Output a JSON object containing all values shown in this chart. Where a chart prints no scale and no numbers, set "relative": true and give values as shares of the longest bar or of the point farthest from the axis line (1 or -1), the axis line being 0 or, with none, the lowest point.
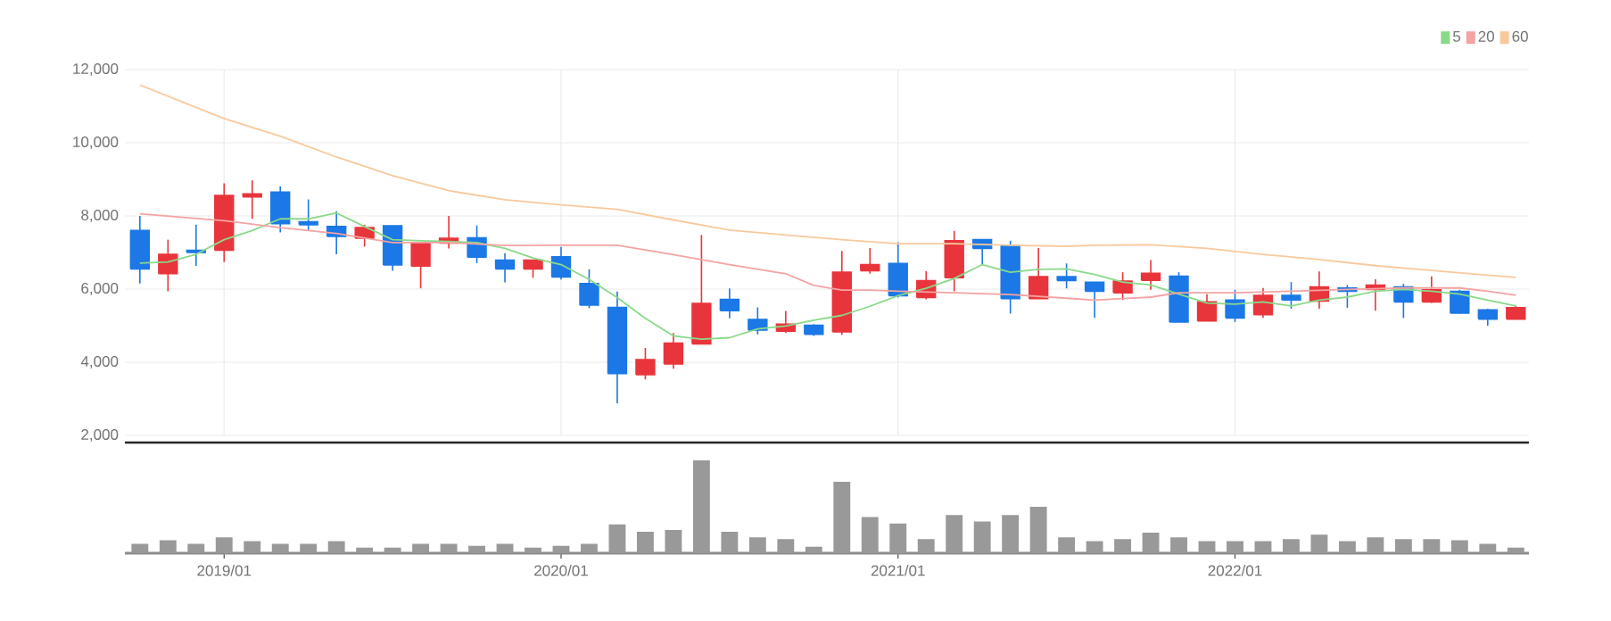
{
  "chart_data": [
    {
      "type": "candlestick",
      "grid": true,
      "legend": "top right",
      "tick_labels": "y",
      "x": [
        "2018-10",
        "2018-11",
        "2018-12",
        "2019-01",
        "2019-02",
        "2019-03",
        "2019-04",
        "2019-05",
        "2019-06",
        "2019-07",
        "2019-08",
        "2019-09",
        "2019-10",
        "2019-11",
        "2019-12",
        "2020-01",
        "2020-02",
        "2020-03",
        "2020-04",
        "2020-05",
        "2020-06",
        "2020-07",
        "2020-08",
        "2020-09",
        "2020-10",
        "2020-11",
        "2020-12",
        "2021-01",
        "2021-02",
        "2021-03",
        "2021-04",
        "2021-05",
        "2021-06",
        "2021-07",
        "2021-08",
        "2021-09",
        "2021-10",
        "2021-11",
        "2021-12",
        "2022-01",
        "2022-02",
        "2022-03",
        "2022-04",
        "2022-05",
        "2022-06",
        "2022-07",
        "2022-08",
        "2022-09",
        "2022-10",
        "2022-11"
      ],
      "ohlc": [
        [
          7600,
          8000,
          6150,
          6550
        ],
        [
          6420,
          7350,
          5940,
          6950
        ],
        [
          7060,
          7760,
          6630,
          7000
        ],
        [
          7060,
          8890,
          6740,
          8560
        ],
        [
          8520,
          8970,
          7920,
          8600
        ],
        [
          8650,
          8810,
          7550,
          7790
        ],
        [
          7840,
          8450,
          7600,
          7760
        ],
        [
          7710,
          8130,
          6950,
          7440
        ],
        [
          7390,
          7760,
          7160,
          7680
        ],
        [
          7730,
          7730,
          6500,
          6660
        ],
        [
          6630,
          7270,
          6020,
          7270
        ],
        [
          7260,
          8000,
          7110,
          7390
        ],
        [
          7400,
          7740,
          6710,
          6870
        ],
        [
          6790,
          6980,
          6180,
          6550
        ],
        [
          6550,
          6790,
          6310,
          6790
        ],
        [
          6880,
          7150,
          6260,
          6330
        ],
        [
          6150,
          6540,
          5480,
          5560
        ],
        [
          5500,
          5930,
          2880,
          3690
        ],
        [
          3660,
          4390,
          3530,
          4070
        ],
        [
          3950,
          4800,
          3820,
          4520
        ],
        [
          4500,
          7480,
          4500,
          5610
        ],
        [
          5720,
          6020,
          5200,
          5410
        ],
        [
          5170,
          5500,
          4760,
          4880
        ],
        [
          4850,
          5400,
          4800,
          5040
        ],
        [
          5010,
          5040,
          4720,
          4760
        ],
        [
          4830,
          7040,
          4750,
          6460
        ],
        [
          6500,
          7120,
          6420,
          6670
        ],
        [
          6700,
          7280,
          5770,
          5820
        ],
        [
          5770,
          6490,
          5720,
          6230
        ],
        [
          6310,
          7590,
          5940,
          7320
        ],
        [
          7350,
          7350,
          6670,
          7110
        ],
        [
          7200,
          7320,
          5330,
          5740
        ],
        [
          5740,
          7120,
          5740,
          6340
        ],
        [
          6340,
          6700,
          6020,
          6230
        ],
        [
          6190,
          6190,
          5210,
          5940
        ],
        [
          5900,
          6460,
          5700,
          6220
        ],
        [
          6240,
          6790,
          5980,
          6430
        ],
        [
          6350,
          6460,
          5100,
          5100
        ],
        [
          5130,
          5860,
          5130,
          5650
        ],
        [
          5700,
          5980,
          5100,
          5210
        ],
        [
          5300,
          6030,
          5210,
          5830
        ],
        [
          5830,
          6190,
          5460,
          5700
        ],
        [
          5670,
          6480,
          5460,
          6060
        ],
        [
          6030,
          6110,
          5490,
          5940
        ],
        [
          5990,
          6270,
          5410,
          6110
        ],
        [
          6060,
          6140,
          5210,
          5650
        ],
        [
          5650,
          6350,
          5620,
          5980
        ],
        [
          5940,
          5980,
          5330,
          5340
        ],
        [
          5430,
          5460,
          5000,
          5180
        ],
        [
          5180,
          5540,
          5170,
          5490
        ]
      ],
      "colors": [
        "#1b78e6",
        "#e8353b",
        "#1b78e6",
        "#e8353b",
        "#e8353b",
        "#1b78e6",
        "#1b78e6",
        "#1b78e6",
        "#e8353b",
        "#1b78e6",
        "#e8353b",
        "#e8353b",
        "#1b78e6",
        "#1b78e6",
        "#e8353b",
        "#1b78e6",
        "#1b78e6",
        "#1b78e6",
        "#e8353b",
        "#e8353b",
        "#e8353b",
        "#1b78e6",
        "#1b78e6",
        "#e8353b",
        "#1b78e6",
        "#e8353b",
        "#e8353b",
        "#1b78e6",
        "#e8353b",
        "#e8353b",
        "#1b78e6",
        "#1b78e6",
        "#e8353b",
        "#1b78e6",
        "#1b78e6",
        "#e8353b",
        "#e8353b",
        "#1b78e6",
        "#e8353b",
        "#1b78e6",
        "#e8353b",
        "#1b78e6",
        "#e8353b",
        "#1b78e6",
        "#e8353b",
        "#1b78e6",
        "#e8353b",
        "#1b78e6",
        "#1b78e6",
        "#e8353b"
      ],
      "series": [
        {
          "name": "5",
          "type": "line",
          "color": "#8ad98a",
          "x": [
            "2018-10",
            "2018-11",
            "2018-12",
            "2019-01",
            "2019-02",
            "2019-03",
            "2019-04",
            "2019-05",
            "2019-06",
            "2019-07",
            "2019-08",
            "2019-09",
            "2019-10",
            "2019-11",
            "2019-12",
            "2020-01",
            "2020-02",
            "2020-03",
            "2020-04",
            "2020-05",
            "2020-06",
            "2020-07",
            "2020-08",
            "2020-09",
            "2020-10",
            "2020-11",
            "2020-12",
            "2021-01",
            "2021-02",
            "2021-03",
            "2021-04",
            "2021-05",
            "2021-06",
            "2021-07",
            "2021-08",
            "2021-09",
            "2021-10",
            "2021-11",
            "2021-12",
            "2022-01",
            "2022-02",
            "2022-03",
            "2022-04",
            "2022-05",
            "2022-06",
            "2022-07",
            "2022-08",
            "2022-09",
            "2022-10",
            "2022-11"
          ],
          "values": [
            6710,
            6740,
            6950,
            7350,
            7600,
            7920,
            7920,
            8080,
            7710,
            7350,
            7320,
            7300,
            7270,
            7110,
            6850,
            6670,
            6260,
            5770,
            5200,
            4720,
            4630,
            4670,
            4910,
            4990,
            5150,
            5280,
            5530,
            5820,
            6020,
            6290,
            6670,
            6460,
            6540,
            6550,
            6400,
            6190,
            6110,
            5860,
            5620,
            5590,
            5650,
            5540,
            5700,
            5780,
            5940,
            5990,
            5940,
            5860,
            5700,
            5540
          ]
        },
        {
          "name": "20",
          "type": "line",
          "color": "#f4a3a3",
          "x": [
            "2018-10",
            "2019-01",
            "2019-03",
            "2019-05",
            "2019-07",
            "2019-09",
            "2019-11",
            "2020-01",
            "2020-03",
            "2020-05",
            "2020-07",
            "2020-09",
            "2020-10",
            "2020-11",
            "2020-12",
            "2021-01",
            "2021-03",
            "2021-05",
            "2021-07",
            "2021-08",
            "2021-10",
            "2021-11",
            "2022-01",
            "2022-03",
            "2022-05",
            "2022-07",
            "2022-09",
            "2022-10",
            "2022-11"
          ],
          "values": [
            8060,
            7870,
            7680,
            7520,
            7270,
            7270,
            7190,
            7200,
            7200,
            6940,
            6670,
            6420,
            6100,
            5970,
            5970,
            5940,
            5900,
            5850,
            5750,
            5700,
            5780,
            5900,
            5900,
            5940,
            5990,
            6030,
            6030,
            5940,
            5830
          ]
        },
        {
          "name": "60",
          "type": "line",
          "color": "#f8c99c",
          "x": [
            "2018-10",
            "2019-01",
            "2019-03",
            "2019-05",
            "2019-07",
            "2019-09",
            "2019-11",
            "2020-01",
            "2020-03",
            "2020-05",
            "2020-07",
            "2020-09",
            "2020-11",
            "2021-01",
            "2021-03",
            "2021-05",
            "2021-07",
            "2021-08",
            "2021-10",
            "2021-12",
            "2022-02",
            "2022-04",
            "2022-06",
            "2022-08",
            "2022-10",
            "2022-11"
          ],
          "values": [
            11580,
            10660,
            10180,
            9610,
            9100,
            8690,
            8440,
            8300,
            8180,
            7890,
            7610,
            7480,
            7350,
            7240,
            7240,
            7200,
            7170,
            7200,
            7210,
            7110,
            6950,
            6810,
            6640,
            6510,
            6380,
            6320
          ]
        }
      ],
      "xlim": [
        "2018-09-15",
        "2022-11-15"
      ],
      "xticks": [
        {
          "value": "2019-01",
          "label": null
        },
        {
          "value": "2020-01",
          "label": null
        },
        {
          "value": "2021-01",
          "label": null
        },
        {
          "value": "2022-01",
          "label": null
        }
      ],
      "ylim": [
        2000,
        12000
      ],
      "yticks": [
        {
          "value": 2000,
          "label": "2,000"
        },
        {
          "value": 4000,
          "label": "4,000"
        },
        {
          "value": 6000,
          "label": "6,000"
        },
        {
          "value": 8000,
          "label": "8,000"
        },
        {
          "value": 10000,
          "label": "10,000"
        },
        {
          "value": 12000,
          "label": "12,000"
        }
      ]
    },
    {
      "type": "bar",
      "relative": true,
      "tick_labels": "x",
      "color": "#999999",
      "x": [
        "2018-10",
        "2018-11",
        "2018-12",
        "2019-01",
        "2019-02",
        "2019-03",
        "2019-04",
        "2019-05",
        "2019-06",
        "2019-07",
        "2019-08",
        "2019-09",
        "2019-10",
        "2019-11",
        "2019-12",
        "2020-01",
        "2020-02",
        "2020-03",
        "2020-04",
        "2020-05",
        "2020-06",
        "2020-07",
        "2020-08",
        "2020-09",
        "2020-10",
        "2020-11",
        "2020-12",
        "2021-01",
        "2021-02",
        "2021-03",
        "2021-04",
        "2021-05",
        "2021-06",
        "2021-07",
        "2021-08",
        "2021-09",
        "2021-10",
        "2021-11",
        "2021-12",
        "2022-01",
        "2022-02",
        "2022-03",
        "2022-04",
        "2022-05",
        "2022-06",
        "2022-07",
        "2022-08",
        "2022-09",
        "2022-10",
        "2022-11"
      ],
      "values": [
        0.1,
        0.14,
        0.1,
        0.17,
        0.13,
        0.1,
        0.1,
        0.13,
        0.06,
        0.06,
        0.1,
        0.1,
        0.08,
        0.1,
        0.06,
        0.08,
        0.1,
        0.31,
        0.23,
        0.25,
        1,
        0.23,
        0.17,
        0.15,
        0.07,
        0.77,
        0.39,
        0.32,
        0.15,
        0.41,
        0.34,
        0.41,
        0.5,
        0.17,
        0.13,
        0.15,
        0.22,
        0.17,
        0.13,
        0.13,
        0.13,
        0.15,
        0.2,
        0.13,
        0.17,
        0.15,
        0.15,
        0.14,
        0.1,
        0.06
      ],
      "xlim": [
        "2018-09-15",
        "2022-11-15"
      ],
      "xticks": [
        {
          "value": "2019-01",
          "label": "2019/01"
        },
        {
          "value": "2020-01",
          "label": "2020/01"
        },
        {
          "value": "2021-01",
          "label": "2021/01"
        },
        {
          "value": "2022-01",
          "label": "2022/01"
        }
      ]
    }
  ]
}
